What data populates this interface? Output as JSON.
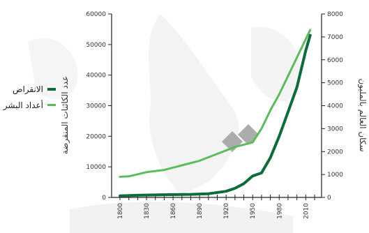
{
  "chart_data": {
    "type": "line",
    "title": "",
    "xlabel": "",
    "ylabel_left": "عدد الكائنات المنقرضة",
    "ylabel_right": "سكان العالم بالمليون",
    "xlim": [
      1800,
      2020
    ],
    "ylim_left": [
      0,
      60000
    ],
    "ylim_right": [
      0,
      8000
    ],
    "x_ticks": [
      1800,
      1830,
      1860,
      1890,
      1920,
      1950,
      1980,
      2010
    ],
    "y_ticks_left": [
      0,
      10000,
      20000,
      30000,
      40000,
      50000,
      60000
    ],
    "y_ticks_right": [
      0,
      1000,
      2000,
      3000,
      4000,
      5000,
      6000,
      7000,
      8000
    ],
    "grid": false,
    "legend_position": "left",
    "series": [
      {
        "name": "الانقراض",
        "axis": "left",
        "color": "#0e6b3a",
        "x": [
          1800,
          1820,
          1850,
          1880,
          1900,
          1920,
          1930,
          1940,
          1950,
          1960,
          1970,
          1980,
          1990,
          2000,
          2010,
          2015
        ],
        "values": [
          500,
          700,
          900,
          1000,
          1200,
          2000,
          3000,
          4500,
          7000,
          8000,
          13000,
          20000,
          28000,
          36000,
          48000,
          53000
        ]
      },
      {
        "name": "أعداد البشر",
        "axis": "right",
        "color": "#5cbb5c",
        "x": [
          1800,
          1810,
          1830,
          1850,
          1870,
          1890,
          1910,
          1930,
          1950,
          1960,
          1970,
          1980,
          1990,
          2000,
          2010,
          2015
        ],
        "values": [
          900,
          920,
          1100,
          1200,
          1400,
          1600,
          1900,
          2200,
          2400,
          3000,
          3800,
          4500,
          5300,
          6100,
          6900,
          7300
        ]
      }
    ]
  }
}
